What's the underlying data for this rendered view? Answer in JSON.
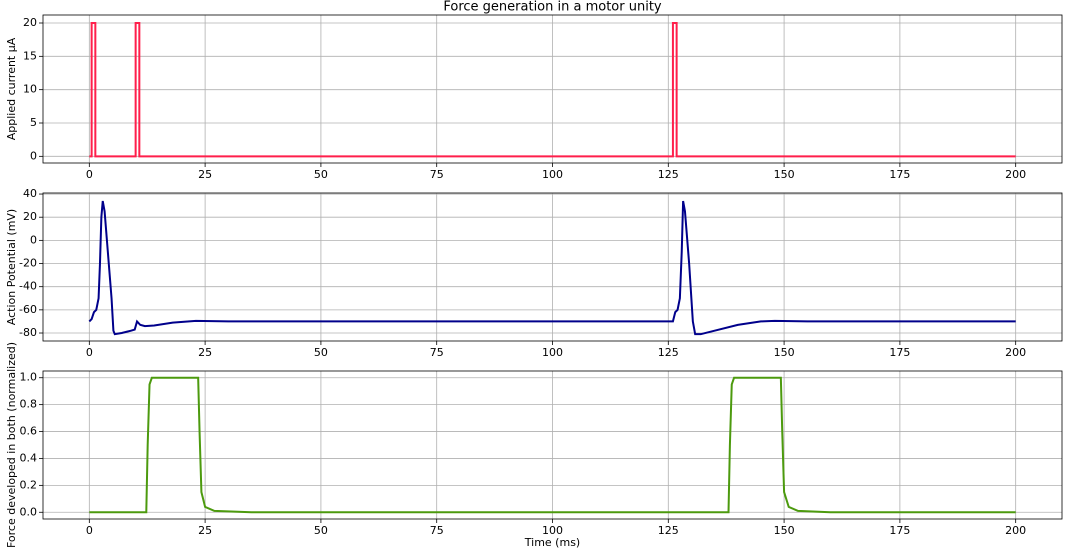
{
  "chart_data": [
    {
      "type": "line",
      "title": "Force generation in a motor unity",
      "y_label": "Applied current μA",
      "x": [
        0,
        0.5,
        0.5,
        1.3,
        1.3,
        10,
        10,
        10.8,
        10.8,
        126,
        126,
        126.8,
        126.8,
        200
      ],
      "series": [
        {
          "name": "Applied current",
          "color": "#ff1f4b",
          "values": [
            0,
            0,
            20,
            20,
            0,
            0,
            20,
            20,
            0,
            0,
            20,
            20,
            0,
            0
          ]
        }
      ],
      "xlim": [
        -10,
        210
      ],
      "xticks": [
        0,
        25,
        50,
        75,
        100,
        125,
        150,
        175,
        200
      ],
      "ylim": [
        -1,
        21.2
      ],
      "yticks": [
        0,
        5,
        10,
        15,
        20
      ],
      "grid": true
    },
    {
      "type": "line",
      "y_label": "Action Potential (mV)",
      "x": [
        0,
        0.5,
        1,
        1.5,
        2,
        2.3,
        2.6,
        2.9,
        3.3,
        4,
        4.8,
        5.2,
        5.5,
        7,
        9,
        9.8,
        10.3,
        11,
        12,
        14,
        18,
        23,
        30,
        126,
        126.5,
        127,
        127.5,
        127.9,
        128.2,
        128.6,
        129.5,
        130.3,
        130.8,
        132,
        135,
        140,
        145,
        148,
        155,
        200
      ],
      "series": [
        {
          "name": "Action Potential",
          "color": "#00008b",
          "values": [
            -70,
            -68,
            -62,
            -60,
            -50,
            -20,
            20,
            34,
            25,
            -10,
            -50,
            -78,
            -81,
            -80,
            -78,
            -77,
            -70,
            -73,
            -74,
            -73.5,
            -71,
            -69.5,
            -70,
            -70,
            -62,
            -60,
            -50,
            -10,
            34,
            25,
            -20,
            -70,
            -81,
            -81,
            -78,
            -73,
            -70,
            -69.5,
            -70,
            -70
          ]
        }
      ],
      "xlim": [
        -10,
        210
      ],
      "xticks": [
        0,
        25,
        50,
        75,
        100,
        125,
        150,
        175,
        200
      ],
      "ylim": [
        -86.9,
        40.9
      ],
      "yticks": [
        -80,
        -60,
        -40,
        -20,
        0,
        20,
        40
      ],
      "grid": true
    },
    {
      "type": "line",
      "y_label": "Force developed in both (normalized)",
      "x_label": "Time (ms)",
      "x": [
        0,
        12.3,
        12.6,
        13,
        13.5,
        23.5,
        23.8,
        24.2,
        25,
        27,
        35,
        138,
        138.3,
        138.7,
        139.2,
        149.3,
        149.6,
        150,
        151,
        153,
        160,
        200
      ],
      "series": [
        {
          "name": "Force",
          "color": "#4c9a0e",
          "values": [
            0,
            0,
            0.5,
            0.95,
            1,
            1,
            0.6,
            0.15,
            0.04,
            0.01,
            0,
            0,
            0.5,
            0.95,
            1,
            1,
            0.6,
            0.15,
            0.04,
            0.01,
            0,
            0
          ]
        }
      ],
      "xlim": [
        -10,
        210
      ],
      "xticks": [
        0,
        25,
        50,
        75,
        100,
        125,
        150,
        175,
        200
      ],
      "ylim": [
        -0.05,
        1.05
      ],
      "yticks": [
        {
          "value": 0,
          "label": "0.0"
        },
        0.2,
        0.4,
        0.6,
        0.8,
        {
          "value": 1,
          "label": "1.0"
        }
      ],
      "grid": true
    }
  ]
}
